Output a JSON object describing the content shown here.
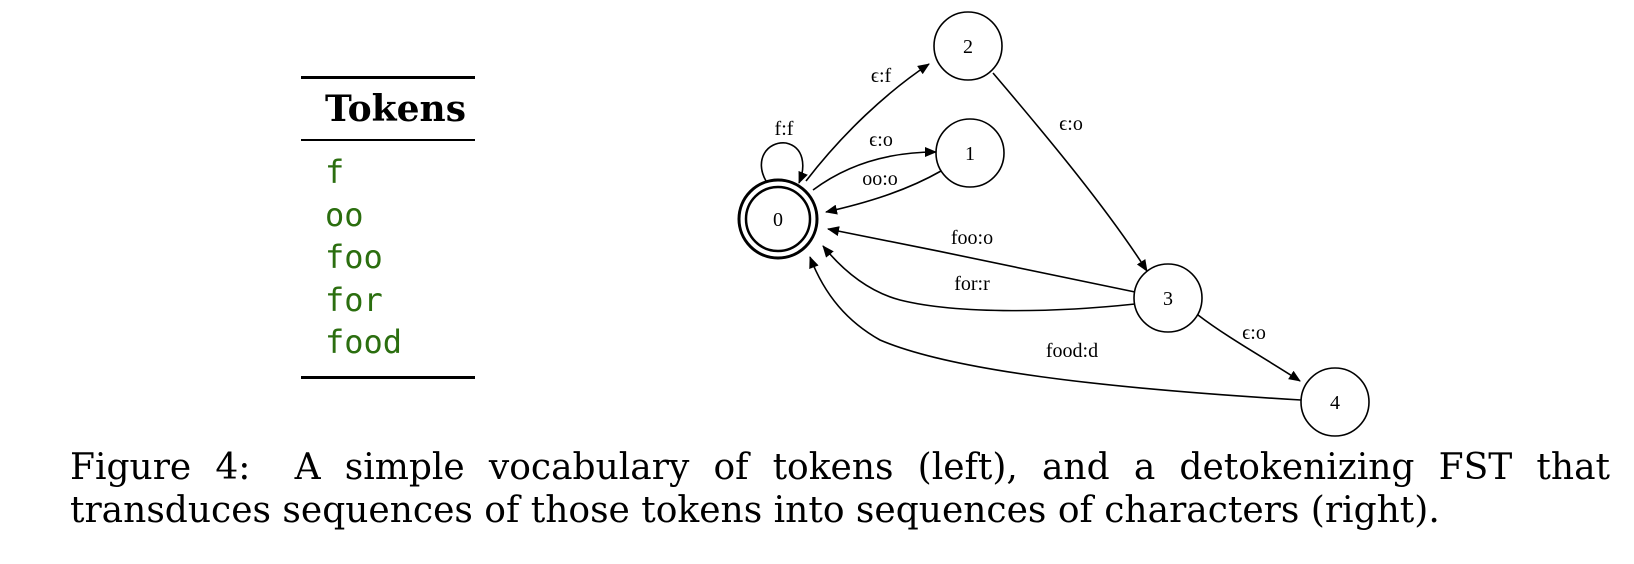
{
  "token_table": {
    "header": "Tokens",
    "tokens": [
      "f",
      "oo",
      "foo",
      "for",
      "food"
    ]
  },
  "fst": {
    "nodes": [
      {
        "id": "0",
        "label": "0",
        "accepting": true
      },
      {
        "id": "1",
        "label": "1",
        "accepting": false
      },
      {
        "id": "2",
        "label": "2",
        "accepting": false
      },
      {
        "id": "3",
        "label": "3",
        "accepting": false
      },
      {
        "id": "4",
        "label": "4",
        "accepting": false
      }
    ],
    "edges": [
      {
        "from": "0",
        "to": "0",
        "label": "f:f"
      },
      {
        "from": "0",
        "to": "2",
        "label": "ϵ:f"
      },
      {
        "from": "0",
        "to": "1",
        "label": "ϵ:o"
      },
      {
        "from": "1",
        "to": "0",
        "label": "oo:o"
      },
      {
        "from": "2",
        "to": "3",
        "label": "ϵ:o"
      },
      {
        "from": "3",
        "to": "0",
        "label": "foo:o"
      },
      {
        "from": "3",
        "to": "0",
        "label": "for:r"
      },
      {
        "from": "3",
        "to": "4",
        "label": "ϵ:o"
      },
      {
        "from": "4",
        "to": "0",
        "label": "food:d"
      }
    ],
    "colors": {
      "stroke": "#000000",
      "token_text": "#2b6e0f"
    }
  },
  "caption": {
    "figure_number": "Figure 4:",
    "text": "A simple vocabulary of tokens (left), and a detokenizing FST that transduces sequences of those tokens into sequences of characters (right)."
  }
}
